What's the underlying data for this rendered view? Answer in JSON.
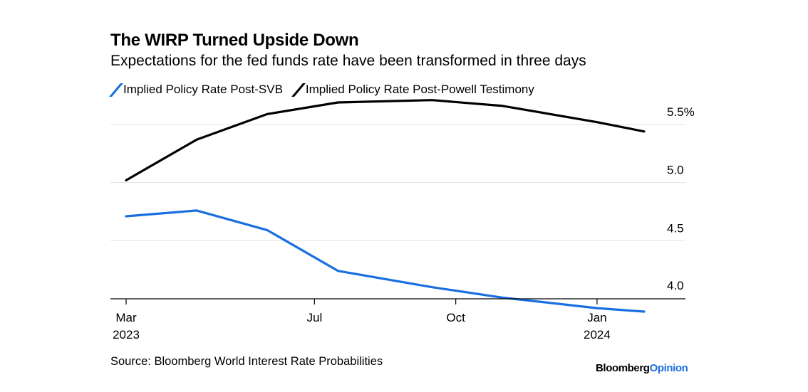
{
  "chart_data": {
    "type": "line",
    "title": "The WIRP Turned Upside Down",
    "subtitle": "Expectations for the fed funds rate have been transformed in three days",
    "source": "Source: Bloomberg World Interest Rate Probabilities",
    "brand": {
      "name": "Bloomberg",
      "suffix": "Opinion"
    },
    "x_ticks": [
      {
        "month": 3,
        "label": "Mar",
        "sublabel": "2023"
      },
      {
        "month": 7,
        "label": "Jul",
        "sublabel": ""
      },
      {
        "month": 10,
        "label": "Oct",
        "sublabel": ""
      },
      {
        "month": 13,
        "label": "Jan",
        "sublabel": "2024"
      }
    ],
    "y_ticks": [
      {
        "value": 4.0,
        "label": "4.0"
      },
      {
        "value": 4.5,
        "label": "4.5"
      },
      {
        "value": 5.0,
        "label": "5.0"
      },
      {
        "value": 5.5,
        "label": "5.5%"
      }
    ],
    "xlim": [
      3,
      14
    ],
    "ylim": [
      4.0,
      5.5
    ],
    "grid": true,
    "legend_position": "top-left",
    "series": [
      {
        "name": "Implied Policy Rate Post-SVB",
        "color": "#1a6fe0",
        "x": [
          3,
          4.5,
          6,
          7.5,
          9.5,
          11,
          13,
          14
        ],
        "y": [
          4.71,
          4.76,
          4.59,
          4.24,
          4.1,
          4.01,
          3.92,
          3.89
        ]
      },
      {
        "name": "Implied Policy Rate Post-Powell Testimony",
        "color": "#000000",
        "x": [
          3,
          4.5,
          6,
          7.5,
          9.5,
          11,
          13,
          14
        ],
        "y": [
          5.02,
          5.37,
          5.59,
          5.69,
          5.71,
          5.66,
          5.52,
          5.44
        ]
      }
    ]
  }
}
